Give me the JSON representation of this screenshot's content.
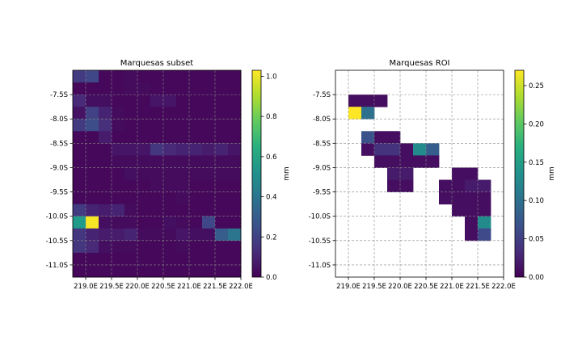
{
  "chart_data": [
    {
      "type": "heatmap",
      "title": "Marquesas subset",
      "xlabel": "",
      "ylabel": "",
      "colorbar_label": "mm",
      "colormap": "viridis",
      "grid": true,
      "vmin": 0.0,
      "vmax": 1.03,
      "xlim": [
        218.75,
        222.0
      ],
      "ylim": [
        -11.25,
        -7.0
      ],
      "x_ticks": [
        219.0,
        219.5,
        220.0,
        220.5,
        221.0,
        221.5,
        222.0
      ],
      "x_tick_labels": [
        "219.0E",
        "219.5E",
        "220.0E",
        "220.5E",
        "221.0E",
        "221.5E",
        "222.0E"
      ],
      "y_ticks": [
        -7.5,
        -8.0,
        -8.5,
        -9.0,
        -9.5,
        -10.0,
        -10.5,
        -11.0
      ],
      "y_tick_labels": [
        "-7.5S",
        "-8.0S",
        "-8.5S",
        "-9.0S",
        "-9.5S",
        "-10.0S",
        "-10.5S",
        "-11.0S"
      ],
      "colorbar_ticks": [
        0.0,
        0.2,
        0.4,
        0.6,
        0.8,
        1.0
      ],
      "colorbar_tick_labels": [
        "0.0",
        "0.2",
        "0.4",
        "0.6",
        "0.8",
        "1.0"
      ],
      "x_start": 218.75,
      "y_start": -7.0,
      "cell_size": 0.25,
      "values": [
        [
          0.18,
          0.22,
          0.02,
          0.02,
          0.03,
          0.02,
          0.02,
          0.02,
          0.02,
          0.02,
          0.02,
          0.02,
          0.02
        ],
        [
          0.02,
          0.02,
          0.02,
          0.02,
          0.03,
          0.03,
          0.02,
          0.02,
          0.02,
          0.02,
          0.02,
          0.02,
          0.02
        ],
        [
          0.12,
          0.04,
          0.04,
          0.02,
          0.02,
          0.02,
          0.06,
          0.06,
          0.02,
          0.02,
          0.02,
          0.02,
          0.02
        ],
        [
          0.05,
          0.2,
          0.1,
          0.03,
          0.02,
          0.02,
          0.02,
          0.02,
          0.02,
          0.02,
          0.02,
          0.02,
          0.02
        ],
        [
          0.18,
          0.24,
          0.14,
          0.03,
          0.02,
          0.02,
          0.02,
          0.02,
          0.02,
          0.02,
          0.02,
          0.02,
          0.02
        ],
        [
          0.02,
          0.02,
          0.08,
          0.02,
          0.02,
          0.02,
          0.02,
          0.02,
          0.02,
          0.02,
          0.02,
          0.02,
          0.02
        ],
        [
          0.02,
          0.02,
          0.02,
          0.06,
          0.06,
          0.06,
          0.16,
          0.12,
          0.1,
          0.1,
          0.08,
          0.1,
          0.06
        ],
        [
          0.02,
          0.02,
          0.02,
          0.03,
          0.03,
          0.03,
          0.03,
          0.03,
          0.03,
          0.03,
          0.03,
          0.03,
          0.03
        ],
        [
          0.02,
          0.02,
          0.02,
          0.02,
          0.04,
          0.03,
          0.03,
          0.03,
          0.03,
          0.03,
          0.03,
          0.03,
          0.03
        ],
        [
          0.02,
          0.02,
          0.02,
          0.02,
          0.02,
          0.02,
          0.03,
          0.03,
          0.03,
          0.02,
          0.02,
          0.02,
          0.02
        ],
        [
          0.02,
          0.02,
          0.02,
          0.02,
          0.02,
          0.02,
          0.02,
          0.02,
          0.03,
          0.02,
          0.02,
          0.02,
          0.02
        ],
        [
          0.18,
          0.1,
          0.08,
          0.1,
          0.03,
          0.02,
          0.02,
          0.02,
          0.02,
          0.02,
          0.02,
          0.02,
          0.02
        ],
        [
          0.56,
          1.02,
          0.04,
          0.03,
          0.03,
          0.02,
          0.02,
          0.04,
          0.03,
          0.02,
          0.22,
          0.02,
          0.02
        ],
        [
          0.16,
          0.1,
          0.08,
          0.08,
          0.1,
          0.03,
          0.03,
          0.03,
          0.06,
          0.04,
          0.04,
          0.3,
          0.4
        ],
        [
          0.16,
          0.12,
          0.04,
          0.03,
          0.03,
          0.02,
          0.02,
          0.02,
          0.03,
          0.02,
          0.02,
          0.02,
          0.02
        ],
        [
          0.02,
          0.02,
          0.02,
          0.02,
          0.02,
          0.02,
          0.02,
          0.02,
          0.02,
          0.02,
          0.02,
          0.02,
          0.02
        ],
        [
          0.02,
          0.02,
          0.02,
          0.02,
          0.02,
          0.02,
          0.02,
          0.02,
          0.02,
          0.02,
          0.02,
          0.02,
          0.02
        ]
      ]
    },
    {
      "type": "heatmap",
      "title": "Marquesas ROI",
      "xlabel": "",
      "ylabel": "",
      "colorbar_label": "mm",
      "colormap": "viridis",
      "grid": true,
      "vmin": 0.0,
      "vmax": 0.27,
      "xlim": [
        218.75,
        222.0
      ],
      "ylim": [
        -11.25,
        -7.0
      ],
      "x_ticks": [
        219.0,
        219.5,
        220.0,
        220.5,
        221.0,
        221.5,
        222.0
      ],
      "x_tick_labels": [
        "219.0E",
        "219.5E",
        "220.0E",
        "220.5E",
        "221.0E",
        "221.5E",
        "222.0E"
      ],
      "y_ticks": [
        -7.5,
        -8.0,
        -8.5,
        -9.0,
        -9.5,
        -10.0,
        -10.5,
        -11.0
      ],
      "y_tick_labels": [
        "-7.5S",
        "-8.0S",
        "-8.5S",
        "-9.0S",
        "-9.5S",
        "-10.0S",
        "-10.5S",
        "-11.0S"
      ],
      "colorbar_ticks": [
        0.0,
        0.05,
        0.1,
        0.15,
        0.2,
        0.25
      ],
      "colorbar_tick_labels": [
        "0.00",
        "0.05",
        "0.10",
        "0.15",
        "0.20",
        "0.25"
      ],
      "x_start": 218.75,
      "y_start": -7.0,
      "cell_size": 0.25,
      "values": [
        [
          null,
          null,
          null,
          null,
          null,
          null,
          null,
          null,
          null,
          null,
          null,
          null,
          null
        ],
        [
          null,
          null,
          null,
          null,
          null,
          null,
          null,
          null,
          null,
          null,
          null,
          null,
          null
        ],
        [
          null,
          0.01,
          0.01,
          0.01,
          null,
          null,
          null,
          null,
          null,
          null,
          null,
          null,
          null
        ],
        [
          null,
          0.27,
          0.1,
          null,
          null,
          null,
          null,
          null,
          null,
          null,
          null,
          null,
          null
        ],
        [
          null,
          null,
          null,
          null,
          null,
          null,
          null,
          null,
          null,
          null,
          null,
          null,
          null
        ],
        [
          null,
          null,
          0.07,
          0.01,
          0.01,
          null,
          null,
          null,
          null,
          null,
          null,
          null,
          null
        ],
        [
          null,
          null,
          0.01,
          0.04,
          0.04,
          0.01,
          0.13,
          0.08,
          null,
          null,
          null,
          null,
          null
        ],
        [
          null,
          null,
          null,
          0.01,
          0.01,
          0.01,
          0.01,
          0.01,
          null,
          null,
          null,
          null,
          null
        ],
        [
          null,
          null,
          null,
          null,
          0.02,
          0.02,
          null,
          null,
          null,
          0.01,
          0.01,
          null,
          null
        ],
        [
          null,
          null,
          null,
          null,
          0.01,
          0.01,
          null,
          null,
          0.01,
          0.01,
          0.02,
          0.02,
          null
        ],
        [
          null,
          null,
          null,
          null,
          null,
          null,
          null,
          null,
          0.01,
          0.01,
          0.01,
          0.01,
          null
        ],
        [
          null,
          null,
          null,
          null,
          null,
          null,
          null,
          null,
          null,
          0.01,
          0.01,
          0.01,
          null
        ],
        [
          null,
          null,
          null,
          null,
          null,
          null,
          null,
          null,
          null,
          null,
          0.01,
          0.13,
          null
        ],
        [
          null,
          null,
          null,
          null,
          null,
          null,
          null,
          null,
          null,
          null,
          0.01,
          0.06,
          null
        ],
        [
          null,
          null,
          null,
          null,
          null,
          null,
          null,
          null,
          null,
          null,
          null,
          null,
          null
        ],
        [
          null,
          null,
          null,
          null,
          null,
          null,
          null,
          null,
          null,
          null,
          null,
          null,
          null
        ],
        [
          null,
          null,
          null,
          null,
          null,
          null,
          null,
          null,
          null,
          null,
          null,
          null,
          null
        ]
      ]
    }
  ]
}
